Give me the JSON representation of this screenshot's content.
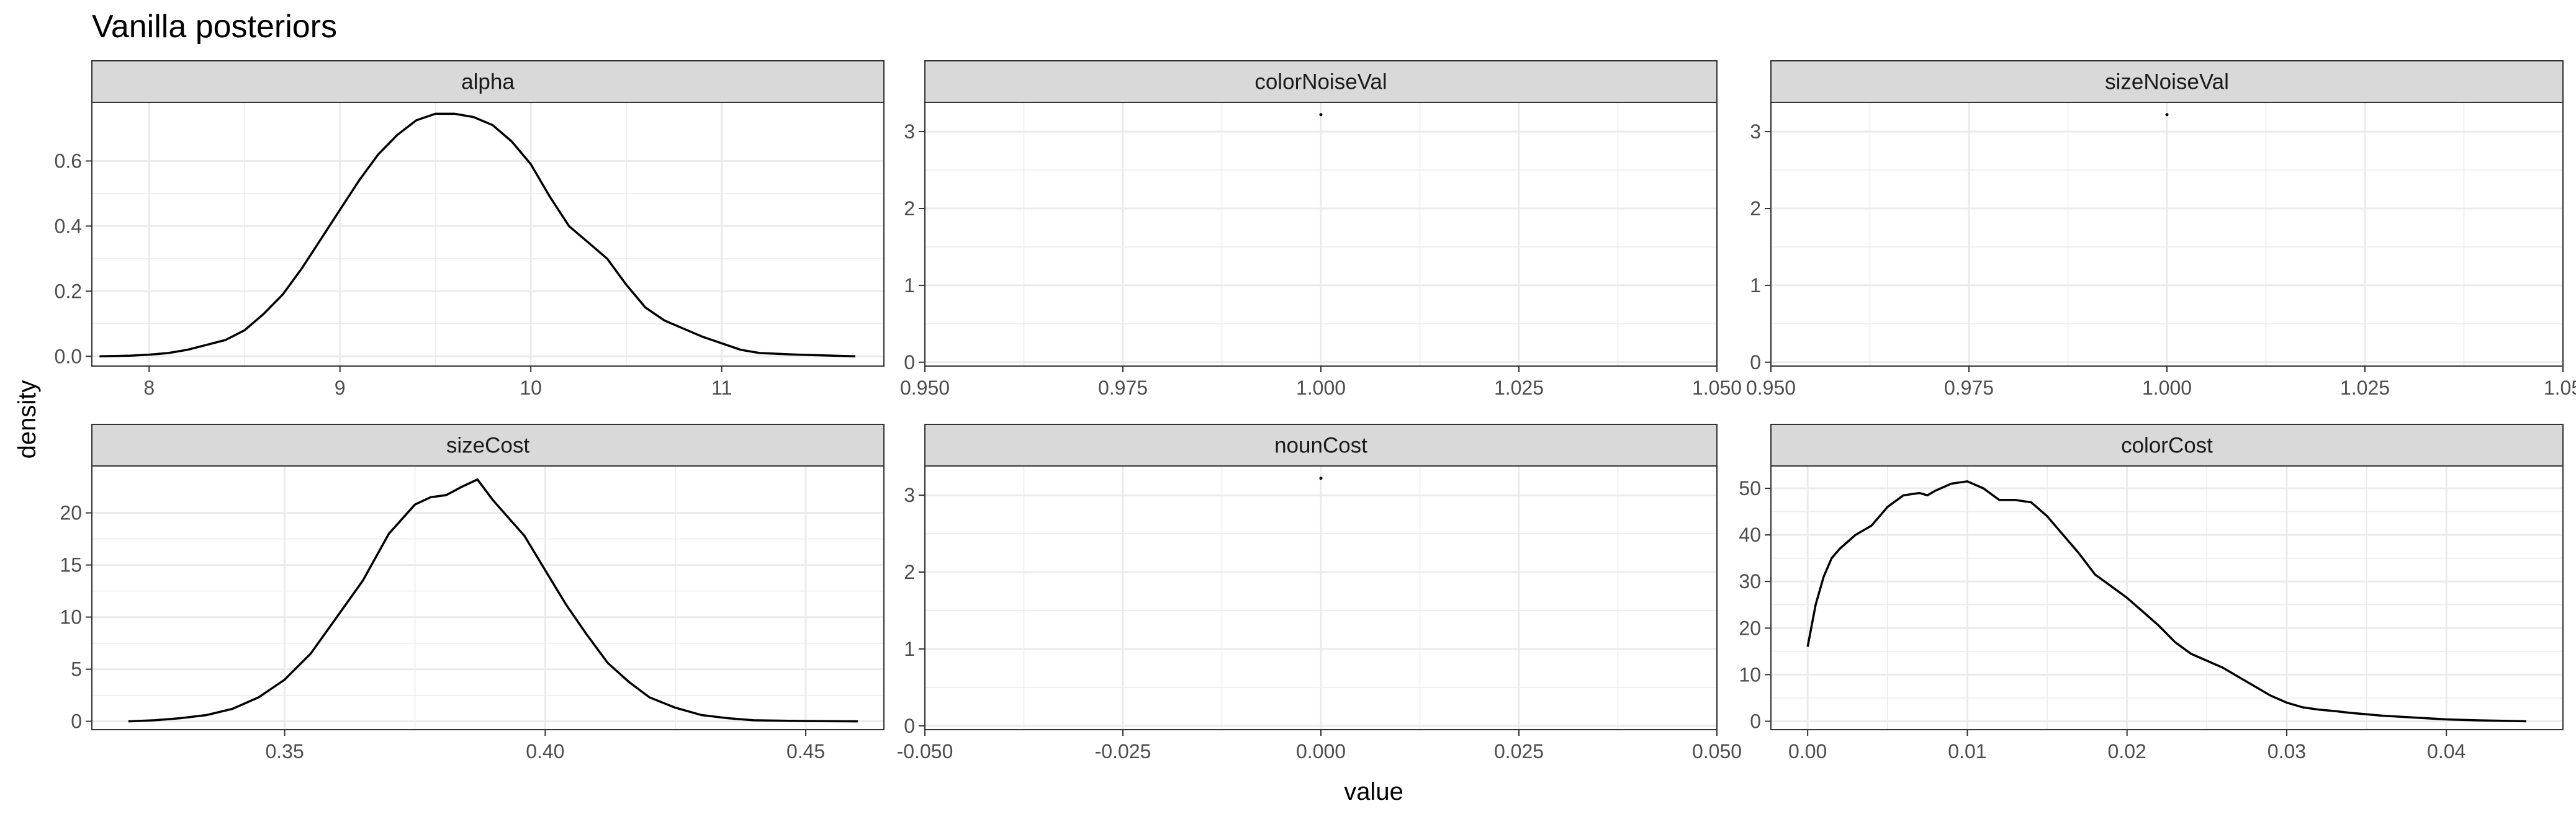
{
  "title": "Vanilla posteriors",
  "xlabel": "value",
  "ylabel": "density",
  "colors": {
    "strip_fill": "#d9d9d9",
    "grid": "#ebebeb",
    "frame": "#333333",
    "line": "#000000"
  },
  "chart_data": [
    {
      "type": "line",
      "facet": "alpha",
      "xlim": [
        7.7,
        11.85
      ],
      "ylim": [
        -0.03,
        0.78
      ],
      "xticks": [
        8,
        9,
        10,
        11
      ],
      "xtick_labels": [
        "8",
        "9",
        "10",
        "11"
      ],
      "yticks": [
        0,
        0.2,
        0.4,
        0.6
      ],
      "ytick_labels": [
        "0.0",
        "0.2",
        "0.4",
        "0.6"
      ],
      "x": [
        7.74,
        7.9,
        8.0,
        8.1,
        8.2,
        8.3,
        8.4,
        8.5,
        8.6,
        8.7,
        8.8,
        8.9,
        9.0,
        9.1,
        9.2,
        9.3,
        9.4,
        9.5,
        9.6,
        9.7,
        9.8,
        9.9,
        10.0,
        10.1,
        10.2,
        10.3,
        10.4,
        10.5,
        10.6,
        10.7,
        10.8,
        10.9,
        11.0,
        11.1,
        11.2,
        11.4,
        11.7
      ],
      "y": [
        0.0,
        0.002,
        0.005,
        0.01,
        0.02,
        0.035,
        0.05,
        0.08,
        0.13,
        0.19,
        0.27,
        0.36,
        0.45,
        0.54,
        0.62,
        0.68,
        0.725,
        0.745,
        0.745,
        0.735,
        0.71,
        0.66,
        0.59,
        0.49,
        0.4,
        0.35,
        0.3,
        0.22,
        0.15,
        0.11,
        0.085,
        0.06,
        0.04,
        0.02,
        0.01,
        0.005,
        0.0
      ]
    },
    {
      "type": "line",
      "facet": "colorNoiseVal",
      "xlim": [
        0.95,
        1.05
      ],
      "ylim": [
        -0.05,
        3.38
      ],
      "xticks": [
        0.95,
        0.975,
        1.0,
        1.025,
        1.05
      ],
      "xtick_labels": [
        "0.950",
        "0.975",
        "1.000",
        "1.025",
        "1.050"
      ],
      "yticks": [
        0,
        1,
        2,
        3
      ],
      "ytick_labels": [
        "0",
        "1",
        "2",
        "3"
      ],
      "x": [
        1.0
      ],
      "y": [
        3.22
      ]
    },
    {
      "type": "line",
      "facet": "sizeNoiseVal",
      "xlim": [
        0.95,
        1.05
      ],
      "ylim": [
        -0.05,
        3.38
      ],
      "xticks": [
        0.95,
        0.975,
        1.0,
        1.025,
        1.05
      ],
      "xtick_labels": [
        "0.950",
        "0.975",
        "1.000",
        "1.025",
        "1.05"
      ],
      "yticks": [
        0,
        1,
        2,
        3
      ],
      "ytick_labels": [
        "0",
        "1",
        "2",
        "3"
      ],
      "x": [
        1.0
      ],
      "y": [
        3.22
      ]
    },
    {
      "type": "line",
      "facet": "sizeCost",
      "xlim": [
        0.313,
        0.465
      ],
      "ylim": [
        -0.8,
        24.5
      ],
      "xticks": [
        0.35,
        0.4,
        0.45
      ],
      "xtick_labels": [
        "0.35",
        "0.40",
        "0.45"
      ],
      "yticks": [
        0,
        5,
        10,
        15,
        20
      ],
      "ytick_labels": [
        "0",
        "5",
        "10",
        "15",
        "20"
      ],
      "x": [
        0.32,
        0.325,
        0.33,
        0.335,
        0.34,
        0.345,
        0.35,
        0.355,
        0.36,
        0.365,
        0.37,
        0.375,
        0.378,
        0.381,
        0.384,
        0.387,
        0.39,
        0.393,
        0.396,
        0.4,
        0.404,
        0.408,
        0.412,
        0.416,
        0.42,
        0.425,
        0.43,
        0.435,
        0.44,
        0.45,
        0.46
      ],
      "y": [
        0.0,
        0.1,
        0.3,
        0.6,
        1.2,
        2.3,
        4.0,
        6.5,
        10.0,
        13.5,
        18.0,
        20.8,
        21.5,
        21.7,
        22.5,
        23.2,
        21.2,
        19.5,
        17.8,
        14.5,
        11.2,
        8.3,
        5.6,
        3.8,
        2.3,
        1.3,
        0.6,
        0.3,
        0.1,
        0.03,
        0.0
      ]
    },
    {
      "type": "line",
      "facet": "nounCost",
      "xlim": [
        -0.05,
        0.05
      ],
      "ylim": [
        -0.05,
        3.38
      ],
      "xticks": [
        -0.05,
        -0.025,
        0.0,
        0.025,
        0.05
      ],
      "xtick_labels": [
        "-0.050",
        "-0.025",
        "0.000",
        "0.025",
        "0.050"
      ],
      "yticks": [
        0,
        1,
        2,
        3
      ],
      "ytick_labels": [
        "0",
        "1",
        "2",
        "3"
      ],
      "x": [
        0.0
      ],
      "y": [
        3.22
      ]
    },
    {
      "type": "line",
      "facet": "colorCost",
      "xlim": [
        -0.0023,
        0.0473
      ],
      "ylim": [
        -1.8,
        54.8
      ],
      "xticks": [
        0.0,
        0.01,
        0.02,
        0.03,
        0.04
      ],
      "xtick_labels": [
        "0.00",
        "0.01",
        "0.02",
        "0.03",
        "0.04"
      ],
      "yticks": [
        0,
        10,
        20,
        30,
        40,
        50
      ],
      "ytick_labels": [
        "0",
        "10",
        "20",
        "30",
        "40",
        "50"
      ],
      "x": [
        0.0,
        0.0005,
        0.001,
        0.0015,
        0.002,
        0.003,
        0.004,
        0.005,
        0.006,
        0.007,
        0.0075,
        0.008,
        0.009,
        0.01,
        0.011,
        0.012,
        0.013,
        0.014,
        0.015,
        0.016,
        0.017,
        0.018,
        0.019,
        0.02,
        0.021,
        0.022,
        0.023,
        0.024,
        0.025,
        0.026,
        0.027,
        0.028,
        0.029,
        0.03,
        0.031,
        0.032,
        0.033,
        0.034,
        0.035,
        0.036,
        0.038,
        0.04,
        0.042,
        0.045
      ],
      "y": [
        16.0,
        25.0,
        31.0,
        35.0,
        37.0,
        40.0,
        42.0,
        46.0,
        48.5,
        49.0,
        48.5,
        49.5,
        51.0,
        51.5,
        50.0,
        47.5,
        47.5,
        47.0,
        44.0,
        40.0,
        36.0,
        31.5,
        29.0,
        26.5,
        23.5,
        20.5,
        17.0,
        14.5,
        13.0,
        11.5,
        9.5,
        7.5,
        5.5,
        4.0,
        3.0,
        2.5,
        2.2,
        1.8,
        1.5,
        1.2,
        0.8,
        0.4,
        0.2,
        0.0
      ]
    }
  ]
}
